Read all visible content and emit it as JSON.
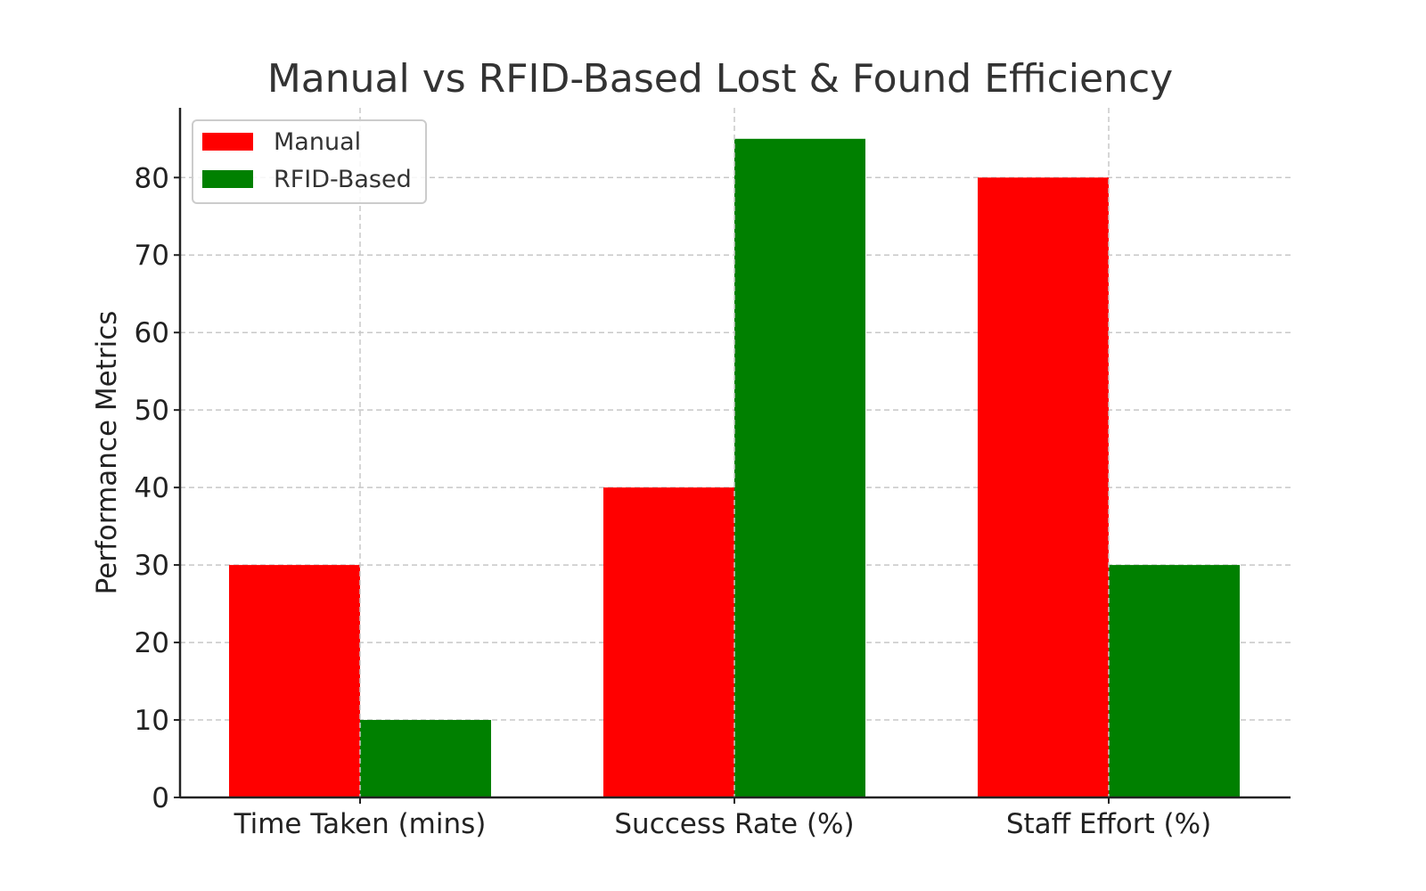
{
  "chart_data": {
    "type": "bar",
    "title": "Manual vs RFID-Based Lost & Found Efficiency",
    "xlabel": "",
    "ylabel": "Performance Metrics",
    "categories": [
      "Time Taken (mins)",
      "Success Rate (%)",
      "Staff Effort (%)"
    ],
    "series": [
      {
        "name": "Manual",
        "color": "#ff0000",
        "values": [
          30,
          40,
          80
        ]
      },
      {
        "name": "RFID-Based",
        "color": "#008000",
        "values": [
          10,
          85,
          30
        ]
      }
    ],
    "ylim": [
      0,
      89
    ],
    "yticks": [
      0,
      10,
      20,
      30,
      40,
      50,
      60,
      70,
      80
    ],
    "grid": true,
    "legend_position": "top-left"
  }
}
